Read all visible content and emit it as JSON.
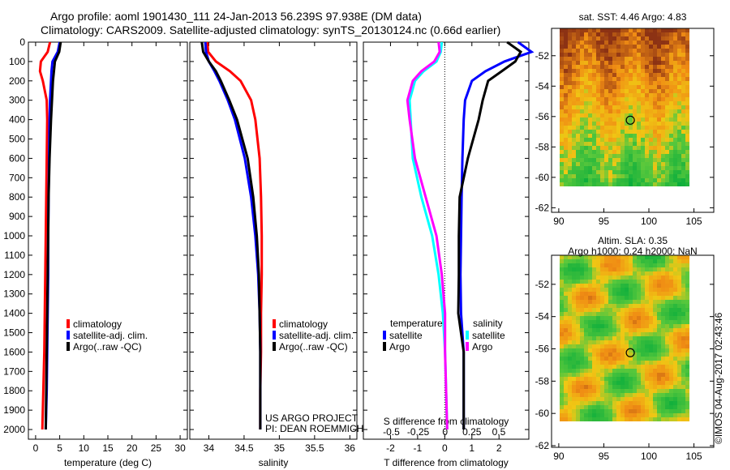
{
  "title_line1": "Argo profile: aoml 1901430_111 24-Jan-2013 56.239S 97.938E (DM data)",
  "title_line2": "Climatology: CARS2009. Satellite-adjusted climatology: synTS_20130124.nc (0.66d earlier)",
  "credit": "©IMOS 04-Aug-2017 02:43:46",
  "project_line1": "US ARGO PROJECT",
  "project_line2": "PI: DEAN ROEMMICH",
  "colors": {
    "climatology": "#ff0000",
    "satellite": "#0000ff",
    "argo": "#000000",
    "sat_salinity": "#00ffff",
    "argo_salinity": "#ff00ff"
  },
  "chart_data": [
    {
      "type": "line",
      "id": "temperature",
      "xlabel": "temperature (deg C)",
      "xlim": [
        -1.5,
        31.5
      ],
      "xticks": [
        0,
        5,
        10,
        15,
        20,
        25,
        30
      ],
      "ylim": [
        2050,
        0
      ],
      "yticks": [
        0,
        100,
        200,
        300,
        400,
        500,
        600,
        700,
        800,
        900,
        1000,
        1100,
        1200,
        1300,
        1400,
        1500,
        1600,
        1700,
        1800,
        1900,
        2000
      ],
      "legend": [
        "climatology",
        "satellite-adj. clim.",
        "Argo(..raw -QC)"
      ],
      "legend_position": "bottom-center",
      "depth": [
        0,
        50,
        100,
        150,
        200,
        300,
        400,
        600,
        800,
        1000,
        1200,
        1400,
        1600,
        1800,
        2000
      ],
      "series": [
        {
          "name": "climatology",
          "color": "#ff0000",
          "values": [
            3.0,
            2.5,
            1.1,
            0.9,
            1.5,
            2.3,
            2.4,
            2.3,
            2.2,
            2.1,
            2.0,
            1.9,
            1.8,
            1.6,
            1.4
          ]
        },
        {
          "name": "satellite-adj. clim.",
          "color": "#0000ff",
          "values": [
            5.0,
            4.6,
            3.5,
            3.3,
            3.2,
            3.0,
            2.9,
            2.8,
            2.7,
            2.6,
            2.6,
            2.5,
            2.4,
            2.3,
            2.1
          ]
        },
        {
          "name": "Argo(..raw -QC)",
          "color": "#000000",
          "values": [
            5.2,
            4.9,
            4.0,
            3.8,
            3.6,
            3.4,
            3.2,
            2.9,
            2.7,
            2.6,
            2.5,
            2.4,
            2.3,
            2.2,
            2.1
          ]
        }
      ]
    },
    {
      "type": "line",
      "id": "salinity",
      "xlabel": "salinity",
      "xlim": [
        33.73,
        36.1
      ],
      "xticks": [
        34,
        34.5,
        35,
        35.5,
        36
      ],
      "ylim": [
        2050,
        0
      ],
      "legend": [
        "climatology",
        "satellite-adj. clim.",
        "Argo(..raw -QC)"
      ],
      "legend_position": "bottom-right",
      "depth": [
        0,
        50,
        100,
        150,
        200,
        300,
        400,
        600,
        800,
        1000,
        1200,
        1400,
        1600,
        1800,
        2000
      ],
      "series": [
        {
          "name": "climatology",
          "color": "#ff0000",
          "values": [
            33.98,
            33.99,
            34.1,
            34.3,
            34.45,
            34.6,
            34.66,
            34.72,
            34.74,
            34.75,
            34.75,
            34.74,
            34.74,
            34.73,
            34.73
          ]
        },
        {
          "name": "satellite-adj. clim.",
          "color": "#0000ff",
          "values": [
            33.95,
            33.96,
            34.0,
            34.08,
            34.15,
            34.27,
            34.37,
            34.51,
            34.6,
            34.66,
            34.7,
            34.72,
            34.73,
            34.73,
            34.73
          ]
        },
        {
          "name": "Argo(..raw -QC)",
          "color": "#000000",
          "values": [
            33.9,
            33.92,
            34.0,
            34.1,
            34.17,
            34.29,
            34.4,
            34.55,
            34.63,
            34.68,
            34.71,
            34.72,
            34.73,
            34.73,
            34.73
          ]
        }
      ]
    },
    {
      "type": "line",
      "id": "difference",
      "xlabel": "T difference from climatology",
      "xlim": [
        -3,
        3.1
      ],
      "xticks": [
        -2,
        -1,
        0,
        1,
        2
      ],
      "x2label": "S difference from climatology",
      "x2lim": [
        -0.76,
        0.78
      ],
      "x2ticks": [
        -0.5,
        -0.25,
        0,
        0.25,
        0.5
      ],
      "ylim": [
        2050,
        0
      ],
      "legend_titles": [
        "temperature",
        "salinity"
      ],
      "legend": [
        [
          "satellite",
          "Argo"
        ],
        [
          "satellite",
          "Argo"
        ]
      ],
      "legend_position": "bottom",
      "depth": [
        0,
        50,
        100,
        150,
        200,
        300,
        400,
        600,
        800,
        1000,
        1200,
        1400,
        1600,
        1800,
        2000
      ],
      "series": [
        {
          "name": "temperature satellite",
          "axis": "T",
          "color": "#0000ff",
          "values": [
            2.7,
            3.2,
            2.2,
            1.5,
            1.0,
            0.75,
            0.7,
            0.65,
            0.62,
            0.6,
            0.58,
            0.6,
            0.7,
            0.7,
            0.7
          ]
        },
        {
          "name": "temperature Argo",
          "axis": "T",
          "color": "#000000",
          "values": [
            2.3,
            2.8,
            2.6,
            2.1,
            1.6,
            1.4,
            1.25,
            0.85,
            0.55,
            0.52,
            0.52,
            0.5,
            0.7,
            0.7,
            0.7
          ]
        },
        {
          "name": "salinity satellite",
          "axis": "S",
          "color": "#00ffff",
          "values": [
            -0.03,
            -0.04,
            -0.08,
            -0.2,
            -0.28,
            -0.33,
            -0.32,
            -0.3,
            -0.22,
            -0.12,
            -0.06,
            -0.02,
            0,
            0.01,
            0.02
          ]
        },
        {
          "name": "salinity Argo",
          "axis": "S",
          "color": "#ff00ff",
          "values": [
            -0.06,
            -0.05,
            -0.1,
            -0.22,
            -0.3,
            -0.35,
            -0.33,
            -0.28,
            -0.18,
            -0.08,
            -0.03,
            0,
            0,
            0.01,
            0.02
          ]
        }
      ]
    },
    {
      "type": "heatmap",
      "id": "sst_map",
      "title": "sat. SST: 4.46 Argo: 4.83",
      "xlim": [
        89.2,
        107.2
      ],
      "xticks": [
        90,
        95,
        100,
        105
      ],
      "ylim": [
        -62.3,
        -50.2
      ],
      "yticks": [
        -52,
        -54,
        -56,
        -58,
        -60,
        -62
      ],
      "marker": {
        "lon": 97.938,
        "lat": -56.239
      }
    },
    {
      "type": "heatmap",
      "id": "sla_map",
      "title": "Altim. SLA: 0.35",
      "subtitle": "Argo h1000: 0.24 h2000: NaN",
      "xlim": [
        89.2,
        107.2
      ],
      "xticks": [
        90,
        95,
        100,
        105
      ],
      "ylim": [
        -62.1,
        -50.2
      ],
      "yticks": [
        -52,
        -54,
        -56,
        -58,
        -60,
        -62
      ],
      "marker": {
        "lon": 97.938,
        "lat": -56.239
      }
    }
  ]
}
